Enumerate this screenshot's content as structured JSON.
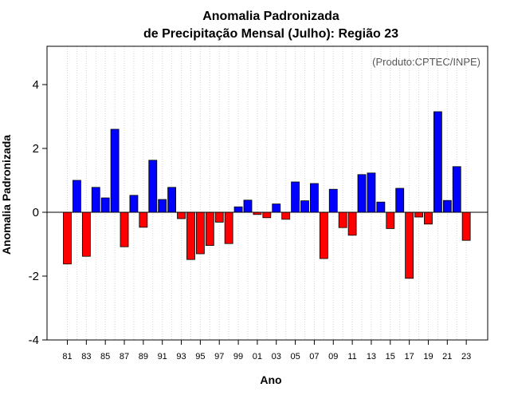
{
  "chart_data": {
    "type": "bar",
    "title": [
      "Anomalia Padronizada",
      "de Precipitação Mensal (Julho): Região 23"
    ],
    "xlabel": "Ano",
    "ylabel": "Anomalia Padronizada",
    "credit": "(Produto:CPTEC/INPE)",
    "ylim": [
      -4,
      5.2
    ],
    "yticks": [
      -4,
      -2,
      0,
      2,
      4
    ],
    "categories": [
      "81",
      "82",
      "83",
      "84",
      "85",
      "86",
      "87",
      "88",
      "89",
      "90",
      "91",
      "92",
      "93",
      "94",
      "95",
      "96",
      "97",
      "98",
      "99",
      "00",
      "01",
      "02",
      "03",
      "04",
      "05",
      "06",
      "07",
      "08",
      "09",
      "10",
      "11",
      "12",
      "13",
      "14",
      "15",
      "16",
      "17",
      "18",
      "19",
      "20",
      "21",
      "22",
      "23"
    ],
    "tick_labels": [
      "81",
      "83",
      "85",
      "87",
      "89",
      "91",
      "93",
      "95",
      "97",
      "99",
      "01",
      "03",
      "05",
      "07",
      "09",
      "11",
      "13",
      "15",
      "17",
      "19",
      "21",
      "23"
    ],
    "values": [
      -1.62,
      1.0,
      -1.38,
      0.78,
      0.45,
      2.6,
      -1.08,
      0.53,
      -0.47,
      1.63,
      0.4,
      0.78,
      -0.2,
      -1.48,
      -1.3,
      -1.04,
      -0.31,
      -0.98,
      0.17,
      0.38,
      -0.07,
      -0.17,
      0.26,
      -0.22,
      0.95,
      0.36,
      0.9,
      -1.45,
      0.72,
      -0.48,
      -0.72,
      1.18,
      1.23,
      0.32,
      -0.51,
      0.75,
      -2.07,
      -0.15,
      -0.37,
      3.15,
      0.37,
      1.43,
      -0.88
    ],
    "colors": {
      "positive": "#0000ff",
      "negative": "#ff0000",
      "grid": "#d3d3d3"
    }
  }
}
